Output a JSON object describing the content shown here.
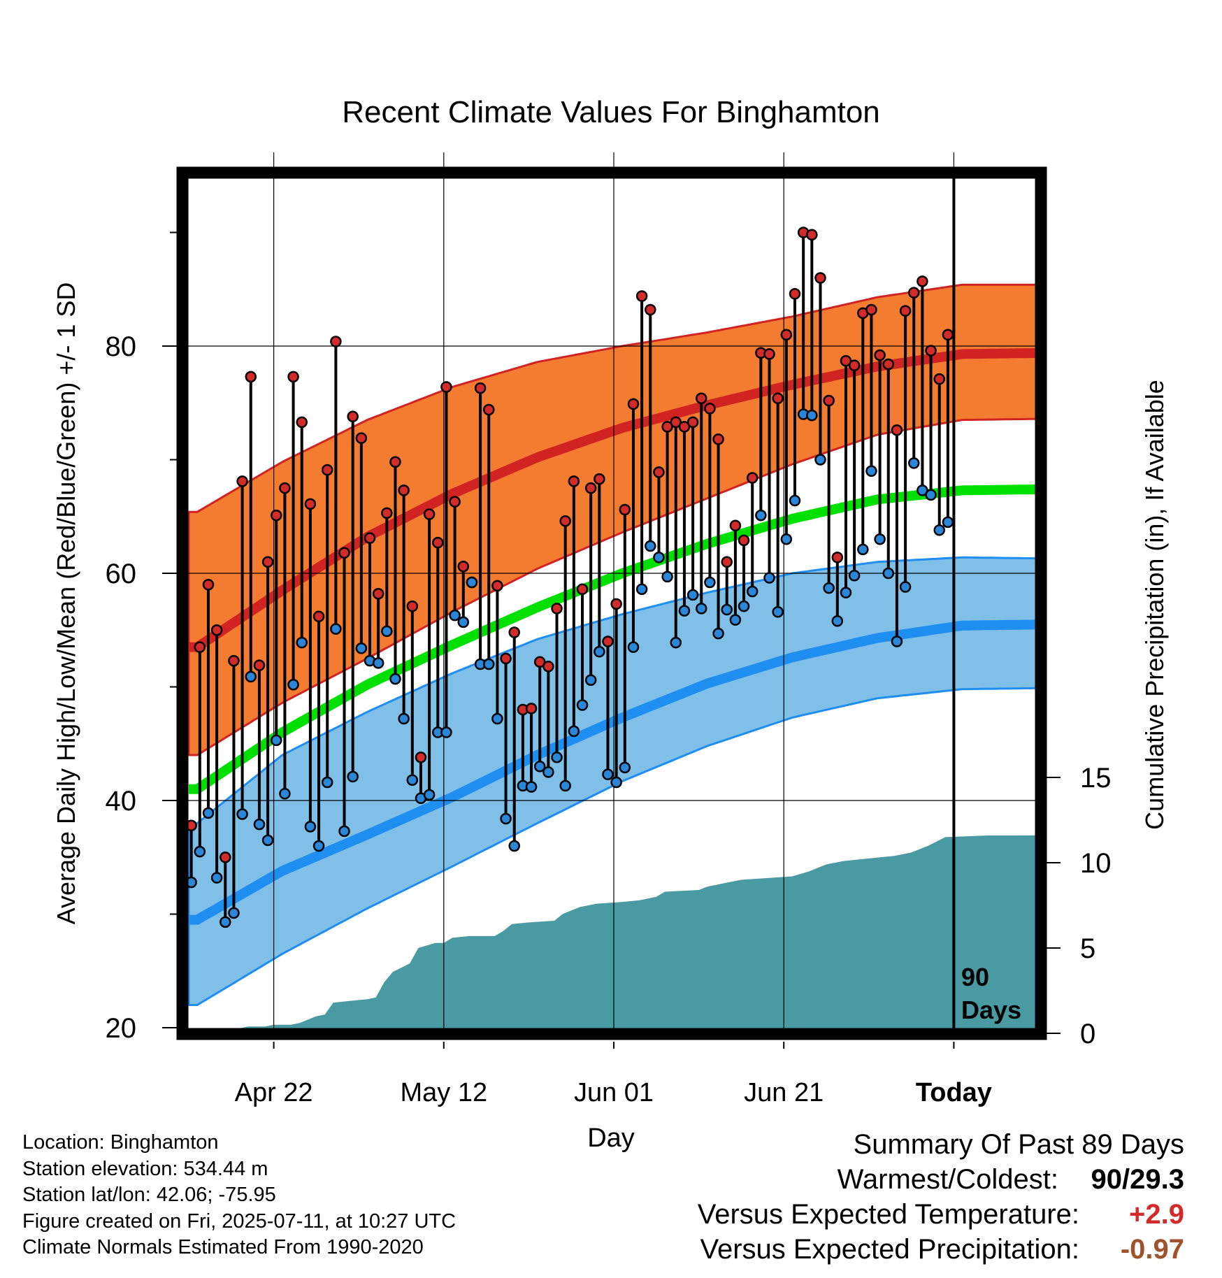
{
  "chart_data": {
    "type": "line",
    "title": "Recent Climate Values For Binghamton",
    "xlabel": "Day",
    "ylabel": "Average Daily High/Low/Mean (Red/Blue/Green) +/- 1 SD",
    "ylabel_right": "Cumulative Precipitation (in), If Available",
    "ylim": [
      20,
      96.5
    ],
    "ylim_right": [
      0,
      38
    ],
    "x_ticks": [
      "Apr 22",
      "May 12",
      "Jun 01",
      "Jun 21",
      "Today"
    ],
    "y_ticks": [
      20,
      40,
      60,
      80
    ],
    "y_ticks_right": [
      0,
      5,
      10,
      15
    ],
    "today_marker_label": "90 Days",
    "grid": true,
    "colors": {
      "high_band": "#f47c30",
      "high_mean": "#d22323",
      "low_band": "#7fbfe8",
      "low_mean": "#1e8ef0",
      "mean_line": "#00e000",
      "precip": "#4a9aa3",
      "high_dot": "#d32a2a",
      "low_dot": "#2a86d8"
    },
    "normals": {
      "days": [
        1,
        11,
        21,
        31,
        41,
        51,
        61,
        71,
        81,
        91,
        101
      ],
      "high_mean": [
        53.5,
        58.5,
        63.2,
        67.0,
        70.2,
        72.8,
        74.8,
        76.6,
        78.2,
        79.3,
        79.4
      ],
      "high_sd_upper": [
        65.4,
        69.8,
        73.5,
        76.4,
        78.6,
        80.0,
        81.2,
        82.6,
        84.3,
        85.4,
        85.4
      ],
      "high_sd_lower": [
        44.0,
        48.6,
        52.5,
        56.6,
        60.4,
        63.6,
        66.6,
        69.6,
        72.2,
        73.5,
        73.6
      ],
      "low_mean": [
        29.5,
        33.8,
        37.0,
        40.3,
        44.0,
        47.3,
        50.3,
        52.6,
        54.3,
        55.4,
        55.5
      ],
      "low_sd_upper": [
        38.0,
        44.0,
        47.8,
        51.2,
        54.2,
        56.4,
        58.3,
        60.0,
        61.0,
        61.4,
        61.3
      ],
      "low_sd_lower": [
        22.0,
        26.5,
        30.5,
        34.2,
        38.0,
        41.7,
        44.8,
        47.3,
        49.0,
        49.8,
        49.9
      ],
      "mean": [
        41.0,
        46.0,
        50.2,
        53.7,
        57.0,
        60.0,
        62.6,
        64.8,
        66.5,
        67.3,
        67.4
      ]
    },
    "series": [
      {
        "name": "High",
        "values": [
          37.8,
          53.5,
          59.0,
          55.0,
          35.0,
          52.3,
          68.1,
          77.3,
          51.9,
          61.0,
          65.1,
          67.5,
          77.3,
          73.3,
          66.1,
          56.2,
          69.1,
          80.4,
          61.8,
          73.8,
          71.9,
          63.1,
          58.2,
          65.3,
          69.8,
          67.3,
          57.1,
          43.8,
          65.2,
          62.7,
          76.4,
          66.3,
          60.6,
          59.2,
          76.3,
          74.4,
          58.9,
          52.5,
          54.8,
          48.0,
          48.1,
          52.2,
          51.8,
          56.9,
          64.6,
          68.1,
          58.6,
          67.5,
          68.3,
          54.0,
          57.3,
          65.6,
          74.9,
          84.4,
          83.2,
          68.9,
          72.9,
          73.3,
          72.9,
          73.3,
          75.4,
          74.5,
          71.8,
          61.0,
          64.2,
          62.9,
          68.4,
          79.4,
          79.3,
          75.4,
          81.0,
          84.6,
          90.0,
          89.8,
          86.0,
          75.2,
          61.4,
          78.7,
          78.3,
          82.9,
          83.2,
          79.2,
          78.4,
          72.6,
          83.1,
          84.7,
          85.7,
          79.6,
          77.1,
          81.0
        ]
      },
      {
        "name": "Low",
        "values": [
          32.8,
          35.5,
          38.9,
          33.2,
          29.3,
          30.1,
          38.8,
          50.9,
          37.9,
          36.5,
          45.3,
          40.6,
          50.2,
          53.9,
          37.7,
          36.0,
          41.6,
          55.1,
          37.3,
          42.1,
          53.4,
          52.3,
          52.1,
          54.9,
          50.7,
          47.2,
          41.8,
          40.2,
          40.5,
          46.0,
          46.0,
          56.3,
          55.7,
          59.2,
          52.0,
          52.0,
          47.2,
          38.4,
          36.0,
          41.3,
          41.2,
          43.0,
          42.5,
          43.8,
          41.3,
          46.1,
          48.4,
          50.6,
          53.1,
          42.3,
          41.6,
          42.9,
          53.5,
          58.6,
          62.4,
          61.4,
          59.7,
          53.9,
          56.7,
          58.1,
          56.9,
          59.2,
          54.7,
          56.8,
          55.9,
          57.1,
          58.4,
          65.1,
          59.6,
          56.6,
          63.0,
          66.4,
          74.0,
          73.9,
          70.0,
          58.7,
          55.8,
          58.3,
          59.8,
          62.1,
          69.0,
          63.0,
          60.0,
          54.0,
          58.8,
          69.7,
          67.3,
          66.9,
          63.8,
          64.5
        ]
      },
      {
        "name": "Cumulative Precipitation",
        "steps": [
          [
            0,
            0.0
          ],
          [
            2,
            0.1
          ],
          [
            3,
            0.3
          ],
          [
            6,
            0.3
          ],
          [
            7,
            0.4
          ],
          [
            9,
            0.4
          ],
          [
            10,
            0.5
          ],
          [
            12,
            0.5
          ],
          [
            13,
            0.6
          ],
          [
            15,
            1.0
          ],
          [
            16,
            1.1
          ],
          [
            17,
            1.8
          ],
          [
            19,
            1.9
          ],
          [
            21,
            2.0
          ],
          [
            22,
            2.1
          ],
          [
            23,
            3.0
          ],
          [
            24,
            3.6
          ],
          [
            26,
            4.1
          ],
          [
            27,
            5.0
          ],
          [
            29,
            5.3
          ],
          [
            30,
            5.3
          ],
          [
            31,
            5.6
          ],
          [
            33,
            5.7
          ],
          [
            36,
            5.7
          ],
          [
            37,
            6.0
          ],
          [
            38,
            6.4
          ],
          [
            40,
            6.5
          ],
          [
            43,
            6.6
          ],
          [
            44,
            7.0
          ],
          [
            46,
            7.4
          ],
          [
            48,
            7.6
          ],
          [
            51,
            7.7
          ],
          [
            53,
            7.8
          ],
          [
            55,
            8.0
          ],
          [
            56,
            8.3
          ],
          [
            60,
            8.4
          ],
          [
            61,
            8.6
          ],
          [
            63,
            8.8
          ],
          [
            65,
            9.0
          ],
          [
            68,
            9.1
          ],
          [
            71,
            9.2
          ],
          [
            73,
            9.5
          ],
          [
            75,
            9.9
          ],
          [
            77,
            10.1
          ],
          [
            79,
            10.2
          ],
          [
            83,
            10.4
          ],
          [
            85,
            10.6
          ],
          [
            87,
            11.0
          ],
          [
            89,
            11.5
          ],
          [
            94,
            11.6
          ],
          [
            100,
            11.6
          ]
        ]
      }
    ]
  },
  "meta": {
    "location": "Location: Binghamton",
    "elevation": "Station elevation: 534.44 m",
    "latlon": "Station lat/lon: 42.06; -75.95",
    "created": "Figure created on Fri, 2025-07-11, at 10:27 UTC",
    "normals": "Climate Normals Estimated From 1990-2020"
  },
  "summary": {
    "title": "Summary Of Past 89 Days",
    "warmest_coldest_label": "Warmest/Coldest:",
    "warmest_coldest_value": "90/29.3",
    "temp_label": "Versus Expected Temperature:",
    "temp_value": "+2.9",
    "temp_color": "#d32a2a",
    "precip_label": "Versus Expected Precipitation:",
    "precip_value": "-0.97",
    "precip_color": "#a0522d"
  }
}
